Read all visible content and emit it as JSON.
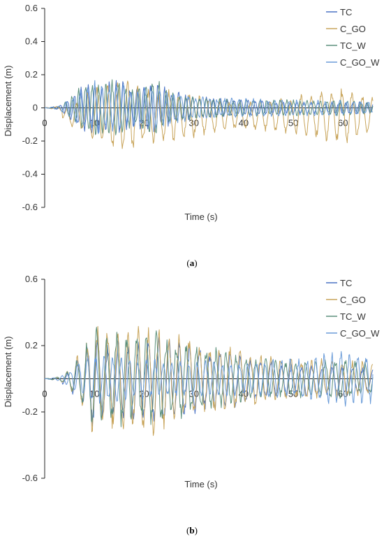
{
  "panels": [
    {
      "label": "a",
      "chart_data": {
        "type": "line",
        "xlabel": "Time (s)",
        "ylabel": "Displacement (m)",
        "xlim": [
          0,
          66
        ],
        "ylim": [
          -0.6,
          0.6
        ],
        "xticks": [
          0,
          10,
          20,
          30,
          40,
          50,
          60
        ],
        "yticks": [
          -0.6,
          -0.4,
          -0.2,
          0,
          0.2,
          0.4,
          0.6
        ],
        "ytick_labels": [
          "-0.6",
          "-0.4",
          "-0.2",
          "0",
          "0.2",
          "0.4",
          "0.6"
        ],
        "legend_position": "top-right",
        "series": [
          {
            "name": "TC",
            "color": "#4a72c4",
            "width": 1.0,
            "envelope": [
              [
                0,
                0
              ],
              [
                3,
                0.01
              ],
              [
                5,
                0.06
              ],
              [
                8,
                0.12
              ],
              [
                10,
                0.14
              ],
              [
                12,
                0.12
              ],
              [
                15,
                0.14
              ],
              [
                18,
                0.1
              ],
              [
                22,
                0.14
              ],
              [
                25,
                0.09
              ],
              [
                30,
                0.06
              ],
              [
                35,
                0.05
              ],
              [
                40,
                0.04
              ],
              [
                50,
                0.03
              ],
              [
                60,
                0.03
              ],
              [
                66,
                0.03
              ]
            ],
            "period": 1.4,
            "phase": 0.0,
            "bias": 0.0
          },
          {
            "name": "C_GO",
            "color": "#c8a45a",
            "width": 1.0,
            "envelope": [
              [
                0,
                0
              ],
              [
                3,
                0.01
              ],
              [
                5,
                0.05
              ],
              [
                8,
                0.1
              ],
              [
                10,
                0.14
              ],
              [
                13,
                0.16
              ],
              [
                16,
                0.2
              ],
              [
                20,
                0.14
              ],
              [
                24,
                0.14
              ],
              [
                28,
                0.12
              ],
              [
                32,
                0.1
              ],
              [
                36,
                0.08
              ],
              [
                40,
                0.07
              ],
              [
                45,
                0.08
              ],
              [
                50,
                0.1
              ],
              [
                55,
                0.12
              ],
              [
                60,
                0.14
              ],
              [
                66,
                0.1
              ]
            ],
            "period": 2.05,
            "phase": 0.6,
            "bias": -0.045
          },
          {
            "name": "TC_W",
            "color": "#5b8f7a",
            "width": 1.0,
            "envelope": [
              [
                0,
                0
              ],
              [
                3,
                0.01
              ],
              [
                5,
                0.06
              ],
              [
                8,
                0.12
              ],
              [
                10,
                0.14
              ],
              [
                12,
                0.13
              ],
              [
                15,
                0.15
              ],
              [
                18,
                0.1
              ],
              [
                22,
                0.15
              ],
              [
                25,
                0.09
              ],
              [
                30,
                0.06
              ],
              [
                35,
                0.05
              ],
              [
                40,
                0.045
              ],
              [
                50,
                0.04
              ],
              [
                60,
                0.04
              ],
              [
                66,
                0.03
              ]
            ],
            "period": 1.35,
            "phase": 1.1,
            "bias": 0.0
          },
          {
            "name": "C_GO_W",
            "color": "#6a9bd8",
            "width": 1.0,
            "envelope": [
              [
                0,
                0
              ],
              [
                3,
                0.01
              ],
              [
                5,
                0.05
              ],
              [
                8,
                0.11
              ],
              [
                10,
                0.14
              ],
              [
                12,
                0.12
              ],
              [
                15,
                0.13
              ],
              [
                18,
                0.09
              ],
              [
                22,
                0.12
              ],
              [
                25,
                0.08
              ],
              [
                30,
                0.06
              ],
              [
                35,
                0.05
              ],
              [
                40,
                0.05
              ],
              [
                50,
                0.04
              ],
              [
                60,
                0.04
              ],
              [
                66,
                0.03
              ]
            ],
            "period": 1.45,
            "phase": 2.0,
            "bias": 0.0
          }
        ]
      }
    },
    {
      "label": "b",
      "chart_data": {
        "type": "line",
        "xlabel": "Time (s)",
        "ylabel": "Displacement (m)",
        "xlim": [
          0,
          66
        ],
        "ylim": [
          -0.6,
          0.6
        ],
        "xticks": [
          0,
          10,
          20,
          30,
          40,
          50,
          60
        ],
        "yticks": [
          -0.6,
          -0.2,
          0.2,
          0.6
        ],
        "ytick_labels": [
          "-0.6",
          "-0.2",
          "0.2",
          "0.6"
        ],
        "legend_position": "top-right",
        "series": [
          {
            "name": "TC",
            "color": "#4a72c4",
            "width": 1.0,
            "envelope": [
              [
                0,
                0
              ],
              [
                3,
                0.01
              ],
              [
                5,
                0.05
              ],
              [
                8,
                0.16
              ],
              [
                10,
                0.25
              ],
              [
                12,
                0.2
              ],
              [
                15,
                0.22
              ],
              [
                18,
                0.2
              ],
              [
                22,
                0.22
              ],
              [
                26,
                0.2
              ],
              [
                30,
                0.17
              ],
              [
                35,
                0.15
              ],
              [
                40,
                0.13
              ],
              [
                45,
                0.1
              ],
              [
                50,
                0.08
              ],
              [
                55,
                0.08
              ],
              [
                60,
                0.07
              ],
              [
                66,
                0.06
              ]
            ],
            "period": 2.05,
            "phase": 0.3,
            "bias": -0.01
          },
          {
            "name": "C_GO",
            "color": "#c8a45a",
            "width": 1.0,
            "envelope": [
              [
                0,
                0
              ],
              [
                3,
                0.01
              ],
              [
                5,
                0.05
              ],
              [
                8,
                0.18
              ],
              [
                10,
                0.3
              ],
              [
                12,
                0.25
              ],
              [
                15,
                0.27
              ],
              [
                18,
                0.25
              ],
              [
                22,
                0.28
              ],
              [
                26,
                0.22
              ],
              [
                30,
                0.2
              ],
              [
                35,
                0.17
              ],
              [
                40,
                0.15
              ],
              [
                45,
                0.12
              ],
              [
                50,
                0.1
              ],
              [
                55,
                0.1
              ],
              [
                60,
                0.1
              ],
              [
                66,
                0.08
              ]
            ],
            "period": 2.05,
            "phase": 0.5,
            "bias": 0.0
          },
          {
            "name": "TC_W",
            "color": "#5b8f7a",
            "width": 1.0,
            "envelope": [
              [
                0,
                0
              ],
              [
                3,
                0.01
              ],
              [
                5,
                0.05
              ],
              [
                8,
                0.16
              ],
              [
                10,
                0.27
              ],
              [
                12,
                0.2
              ],
              [
                15,
                0.25
              ],
              [
                18,
                0.22
              ],
              [
                22,
                0.24
              ],
              [
                26,
                0.2
              ],
              [
                30,
                0.18
              ],
              [
                35,
                0.15
              ],
              [
                40,
                0.12
              ],
              [
                45,
                0.1
              ],
              [
                50,
                0.09
              ],
              [
                55,
                0.1
              ],
              [
                60,
                0.1
              ],
              [
                66,
                0.08
              ]
            ],
            "period": 2.0,
            "phase": 0.1,
            "bias": 0.0
          },
          {
            "name": "C_GO_W",
            "color": "#6a9bd8",
            "width": 1.0,
            "envelope": [
              [
                0,
                0
              ],
              [
                3,
                0.01
              ],
              [
                5,
                0.04
              ],
              [
                8,
                0.1
              ],
              [
                10,
                0.14
              ],
              [
                12,
                0.12
              ],
              [
                15,
                0.12
              ],
              [
                18,
                0.1
              ],
              [
                22,
                0.1
              ],
              [
                26,
                0.09
              ],
              [
                30,
                0.09
              ],
              [
                35,
                0.09
              ],
              [
                40,
                0.09
              ],
              [
                45,
                0.1
              ],
              [
                50,
                0.1
              ],
              [
                55,
                0.12
              ],
              [
                60,
                0.14
              ],
              [
                66,
                0.12
              ]
            ],
            "period": 1.7,
            "phase": 1.3,
            "bias": 0.0
          }
        ]
      }
    }
  ]
}
